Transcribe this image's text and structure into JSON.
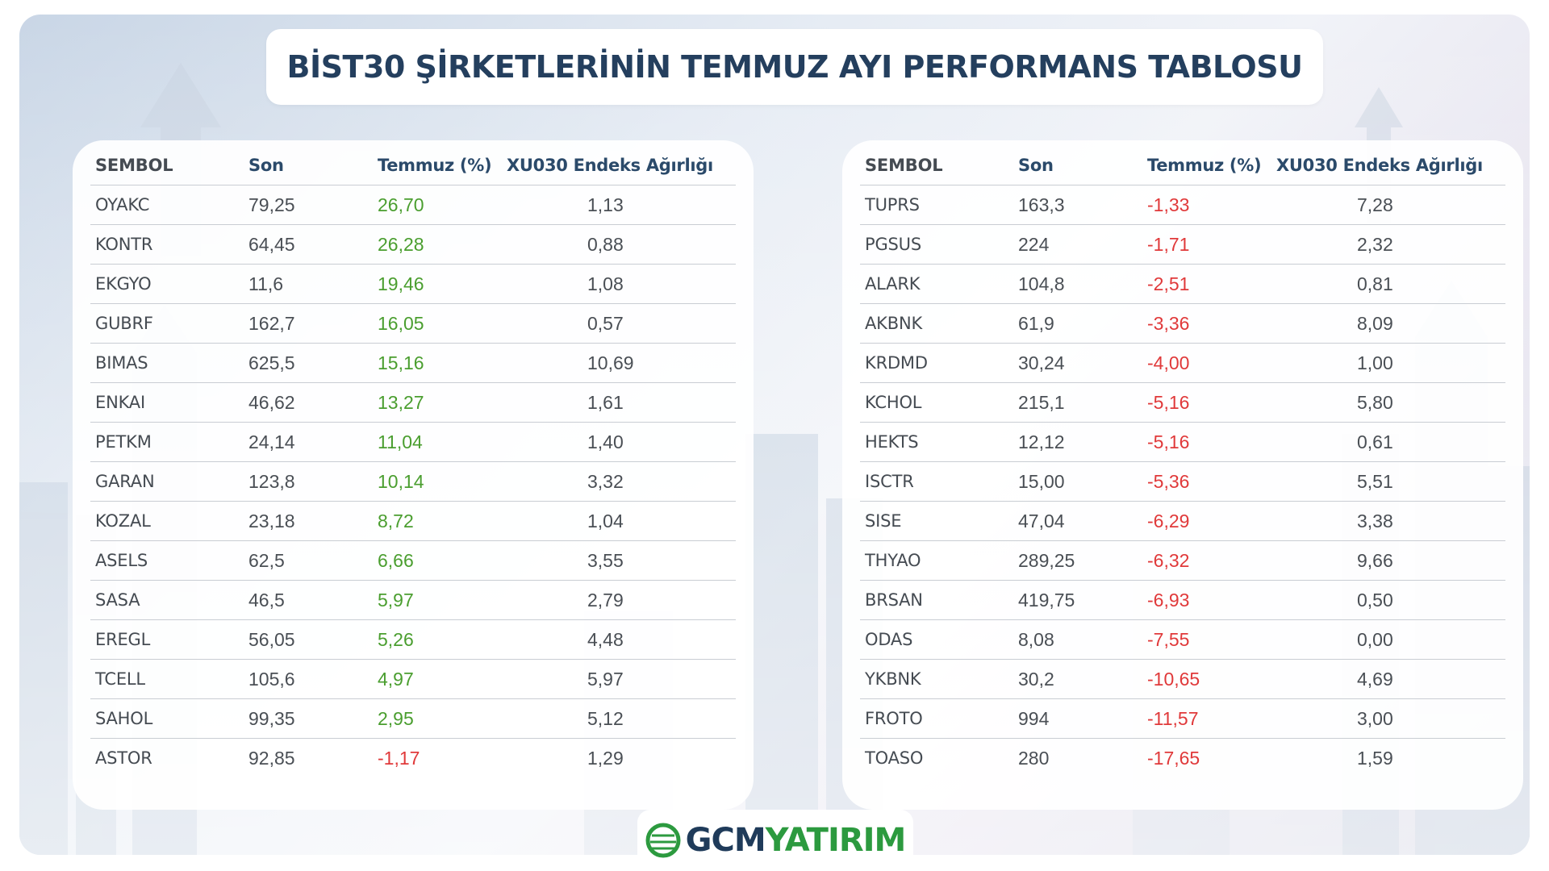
{
  "title": "BİST30 ŞİRKETLERİNİN TEMMUZ AYI PERFORMANS TABLOSU",
  "columns": [
    "SEMBOL",
    "Son",
    "Temmuz (%)",
    "XU030 Endeks Ağırlığı"
  ],
  "colors": {
    "positive": "#4a9e2f",
    "negative": "#e0393a",
    "heading": "#243f5e"
  },
  "left_table": [
    {
      "sembol": "OYAKC",
      "son": "79,25",
      "temmuz": "26,70",
      "agirlik": "1,13",
      "sign": "pos"
    },
    {
      "sembol": "KONTR",
      "son": "64,45",
      "temmuz": "26,28",
      "agirlik": "0,88",
      "sign": "pos"
    },
    {
      "sembol": "EKGYO",
      "son": "11,6",
      "temmuz": "19,46",
      "agirlik": "1,08",
      "sign": "pos"
    },
    {
      "sembol": "GUBRF",
      "son": "162,7",
      "temmuz": "16,05",
      "agirlik": "0,57",
      "sign": "pos"
    },
    {
      "sembol": "BIMAS",
      "son": "625,5",
      "temmuz": "15,16",
      "agirlik": "10,69",
      "sign": "pos"
    },
    {
      "sembol": "ENKAI",
      "son": "46,62",
      "temmuz": "13,27",
      "agirlik": "1,61",
      "sign": "pos"
    },
    {
      "sembol": "PETKM",
      "son": "24,14",
      "temmuz": "11,04",
      "agirlik": "1,40",
      "sign": "pos"
    },
    {
      "sembol": "GARAN",
      "son": "123,8",
      "temmuz": "10,14",
      "agirlik": "3,32",
      "sign": "pos"
    },
    {
      "sembol": "KOZAL",
      "son": "23,18",
      "temmuz": "8,72",
      "agirlik": "1,04",
      "sign": "pos"
    },
    {
      "sembol": "ASELS",
      "son": "62,5",
      "temmuz": "6,66",
      "agirlik": "3,55",
      "sign": "pos"
    },
    {
      "sembol": "SASA",
      "son": "46,5",
      "temmuz": "5,97",
      "agirlik": "2,79",
      "sign": "pos"
    },
    {
      "sembol": "EREGL",
      "son": "56,05",
      "temmuz": "5,26",
      "agirlik": "4,48",
      "sign": "pos"
    },
    {
      "sembol": "TCELL",
      "son": "105,6",
      "temmuz": "4,97",
      "agirlik": "5,97",
      "sign": "pos"
    },
    {
      "sembol": "SAHOL",
      "son": "99,35",
      "temmuz": "2,95",
      "agirlik": "5,12",
      "sign": "pos"
    },
    {
      "sembol": "ASTOR",
      "son": "92,85",
      "temmuz": "-1,17",
      "agirlik": "1,29",
      "sign": "neg"
    }
  ],
  "right_table": [
    {
      "sembol": "TUPRS",
      "son": "163,3",
      "temmuz": "-1,33",
      "agirlik": "7,28",
      "sign": "neg"
    },
    {
      "sembol": "PGSUS",
      "son": "224",
      "temmuz": "-1,71",
      "agirlik": "2,32",
      "sign": "neg"
    },
    {
      "sembol": "ALARK",
      "son": "104,8",
      "temmuz": "-2,51",
      "agirlik": "0,81",
      "sign": "neg"
    },
    {
      "sembol": "AKBNK",
      "son": "61,9",
      "temmuz": "-3,36",
      "agirlik": "8,09",
      "sign": "neg"
    },
    {
      "sembol": "KRDMD",
      "son": "30,24",
      "temmuz": "-4,00",
      "agirlik": "1,00",
      "sign": "neg"
    },
    {
      "sembol": "KCHOL",
      "son": "215,1",
      "temmuz": "-5,16",
      "agirlik": "5,80",
      "sign": "neg"
    },
    {
      "sembol": "HEKTS",
      "son": "12,12",
      "temmuz": "-5,16",
      "agirlik": "0,61",
      "sign": "neg"
    },
    {
      "sembol": "ISCTR",
      "son": "15,00",
      "temmuz": "-5,36",
      "agirlik": "5,51",
      "sign": "neg"
    },
    {
      "sembol": "SISE",
      "son": "47,04",
      "temmuz": "-6,29",
      "agirlik": "3,38",
      "sign": "neg"
    },
    {
      "sembol": "THYAO",
      "son": "289,25",
      "temmuz": "-6,32",
      "agirlik": "9,66",
      "sign": "neg"
    },
    {
      "sembol": "BRSAN",
      "son": "419,75",
      "temmuz": "-6,93",
      "agirlik": "0,50",
      "sign": "neg"
    },
    {
      "sembol": "ODAS",
      "son": "8,08",
      "temmuz": "-7,55",
      "agirlik": "0,00",
      "sign": "neg"
    },
    {
      "sembol": "YKBNK",
      "son": "30,2",
      "temmuz": "-10,65",
      "agirlik": "4,69",
      "sign": "neg"
    },
    {
      "sembol": "FROTO",
      "son": "994",
      "temmuz": "-11,57",
      "agirlik": "3,00",
      "sign": "neg"
    },
    {
      "sembol": "TOASO",
      "son": "280",
      "temmuz": "-17,65",
      "agirlik": "1,59",
      "sign": "neg"
    }
  ],
  "logo": {
    "part1": "GCM",
    "part2": "YATIRIM"
  }
}
